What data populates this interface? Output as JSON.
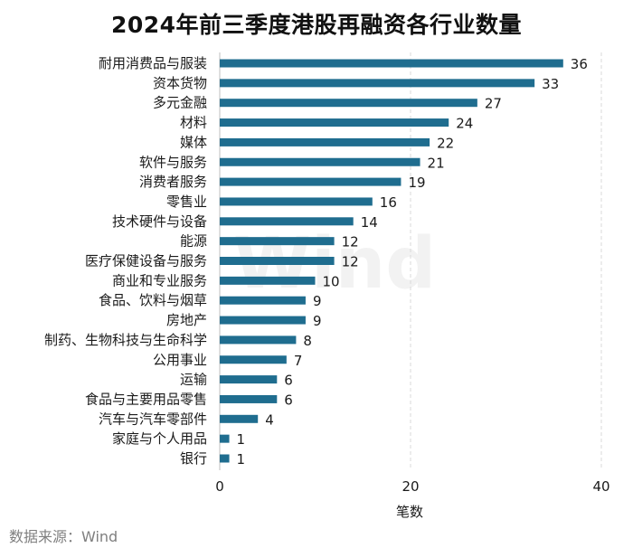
{
  "chart_data": {
    "type": "bar",
    "orientation": "horizontal",
    "title": "2024年前三季度港股再融资各行业数量",
    "categories": [
      "耐用消费品与服装",
      "资本货物",
      "多元金融",
      "材料",
      "媒体",
      "软件与服务",
      "消费者服务",
      "零售业",
      "技术硬件与设备",
      "能源",
      "医疗保健设备与服务",
      "商业和专业服务",
      "食品、饮料与烟草",
      "房地产",
      "制药、生物科技与生命科学",
      "公用事业",
      "运输",
      "食品与主要用品零售",
      "汽车与汽车零部件",
      "家庭与个人用品",
      "银行"
    ],
    "values": [
      36,
      33,
      27,
      24,
      22,
      21,
      19,
      16,
      14,
      12,
      12,
      10,
      9,
      9,
      8,
      7,
      6,
      6,
      4,
      1,
      1
    ],
    "xlabel": "笔数",
    "ylabel": "",
    "xlim": [
      0,
      40
    ],
    "xticks": [
      0,
      20,
      40
    ],
    "grid": "vertical dashed",
    "bar_color": "#1f6d8f"
  },
  "watermark": "Wind",
  "source": "数据来源：Wind"
}
